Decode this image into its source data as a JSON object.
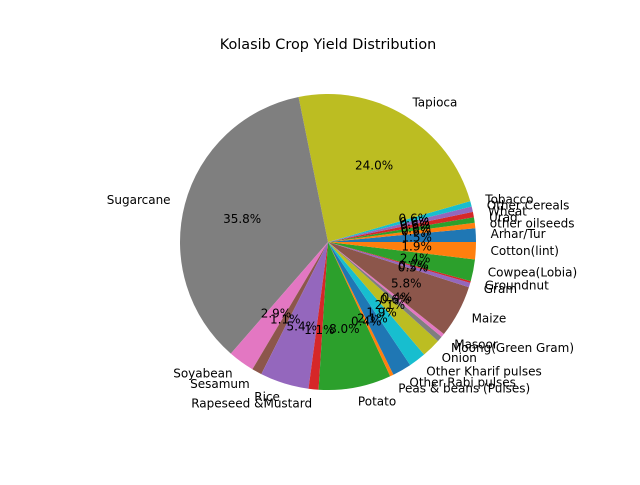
{
  "chart_data": {
    "type": "pie",
    "title": "Kolasib Crop Yield Distribution",
    "start_angle_deg": 0,
    "direction": "counterclockwise",
    "autopct_format": "1 decimal",
    "slices": [
      {
        "label": "Arhar/Tur",
        "value": 1.5,
        "pct_label": "1.5%",
        "color": "#1f77b4"
      },
      {
        "label": "other oilseeds",
        "value": 0.6,
        "pct_label": "0.6%",
        "color": "#ff7f0e"
      },
      {
        "label": "Urad",
        "value": 0.6,
        "pct_label": "0.6%",
        "color": "#2ca02c"
      },
      {
        "label": "Wheat",
        "value": 0.6,
        "pct_label": "0.6%",
        "color": "#d62728"
      },
      {
        "label": "Other Cereals",
        "value": 0.6,
        "pct_label": "0.6%",
        "color": "#9467bd"
      },
      {
        "label": "Tobacco",
        "value": 0.6,
        "pct_label": "0.6%",
        "color": "#17becf"
      },
      {
        "label": "Tapioca",
        "value": 24.0,
        "pct_label": "24.0%",
        "color": "#bcbd22"
      },
      {
        "label": "Sugarcane",
        "value": 35.8,
        "pct_label": "35.8%",
        "color": "#7f7f7f"
      },
      {
        "label": "Soyabean",
        "value": 2.9,
        "pct_label": "2.9%",
        "color": "#e377c2"
      },
      {
        "label": "Sesamum",
        "value": 1.1,
        "pct_label": "1.1%",
        "color": "#8c564b"
      },
      {
        "label": "Rice",
        "value": 5.4,
        "pct_label": "5.4%",
        "color": "#9467bd"
      },
      {
        "label": "Rapeseed &Mustard",
        "value": 1.1,
        "pct_label": "1.1%",
        "color": "#d62728"
      },
      {
        "label": "Potato",
        "value": 8.0,
        "pct_label": "8.0%",
        "color": "#2ca02c"
      },
      {
        "label": "Peas & beans (Pulses)",
        "value": 0.4,
        "pct_label": "0.4%",
        "color": "#ff7f0e"
      },
      {
        "label": "Other Rabi pulses",
        "value": 2.1,
        "pct_label": "2.1%",
        "color": "#1f77b4"
      },
      {
        "label": "Other Kharif pulses",
        "value": 1.9,
        "pct_label": "1.9%",
        "color": "#17becf"
      },
      {
        "label": "Onion",
        "value": 2.1,
        "pct_label": "2.1%",
        "color": "#bcbd22"
      },
      {
        "label": "Moong(Green Gram)",
        "value": 0.6,
        "pct_label": "0.6%",
        "color": "#7f7f7f"
      },
      {
        "label": "Masoor",
        "value": 0.4,
        "pct_label": "0.4%",
        "color": "#e377c2"
      },
      {
        "label": "Maize",
        "value": 5.8,
        "pct_label": "5.8%",
        "color": "#8c564b"
      },
      {
        "label": "Gram",
        "value": 0.5,
        "pct_label": "0.5%",
        "color": "#9467bd"
      },
      {
        "label": "Groundnut",
        "value": 0.2,
        "pct_label": "0.2%",
        "color": "#d62728"
      },
      {
        "label": "Cowpea(Lobia)",
        "value": 2.4,
        "pct_label": "2.4%",
        "color": "#2ca02c"
      },
      {
        "label": "Cotton(lint)",
        "value": 1.9,
        "pct_label": "1.9%",
        "color": "#ff7f0e"
      }
    ]
  }
}
